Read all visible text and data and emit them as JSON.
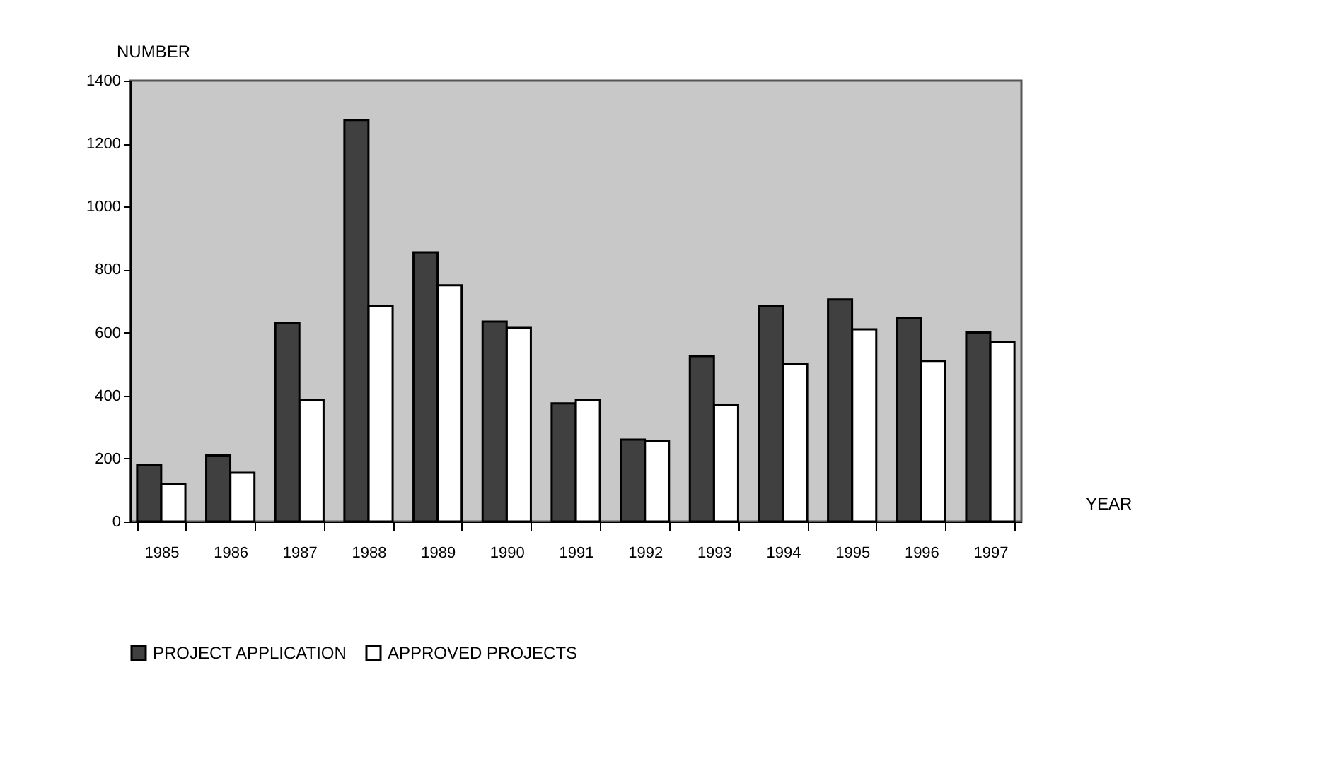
{
  "chart_data": {
    "type": "bar",
    "xlabel": "YEAR",
    "ylabel": "NUMBER",
    "categories": [
      "1985",
      "1986",
      "1987",
      "1988",
      "1989",
      "1990",
      "1991",
      "1992",
      "1993",
      "1994",
      "1995",
      "1996",
      "1997"
    ],
    "series": [
      {
        "name": "PROJECT APPLICATION",
        "color": "#404040",
        "values": [
          180,
          210,
          630,
          1275,
          855,
          635,
          375,
          260,
          525,
          685,
          705,
          645,
          600
        ]
      },
      {
        "name": "APPROVED PROJECTS",
        "color": "#ffffff",
        "values": [
          120,
          155,
          385,
          685,
          750,
          615,
          385,
          255,
          370,
          500,
          610,
          510,
          570
        ]
      }
    ],
    "ylim": [
      0,
      1400
    ],
    "yticks": [
      0,
      200,
      400,
      600,
      800,
      1000,
      1200,
      1400
    ],
    "grid": false,
    "legend": "bottom"
  }
}
